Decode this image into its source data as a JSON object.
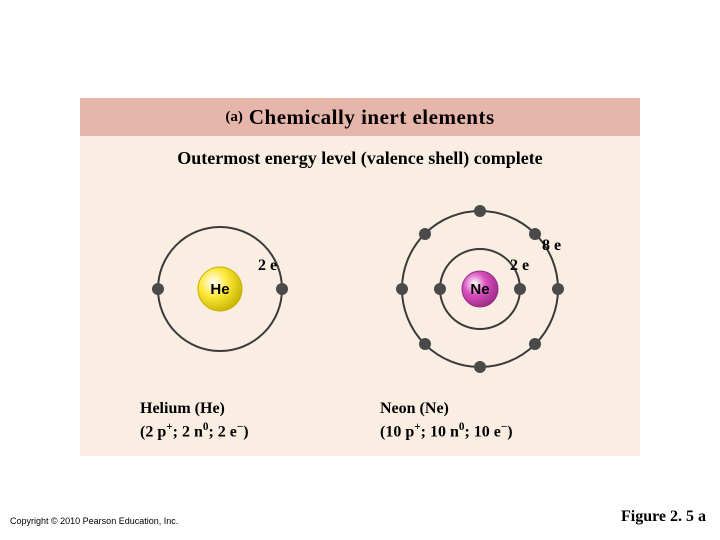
{
  "colors": {
    "panel_bg": "#faeee3",
    "title_bar_bg": "#e6b6ab",
    "orbit_stroke": "#3a3a3a",
    "electron_fill": "#4a4a4a",
    "he_fill": "#ffe83a",
    "he_stroke": "#c8b400",
    "ne_fill": "#d94fbf",
    "ne_stroke": "#9a2d86",
    "nucleus_text": "#000000"
  },
  "title": {
    "prefix": "(a)",
    "text": "Chemically inert elements"
  },
  "subtitle": "Outermost energy level (valence shell) complete",
  "helium": {
    "symbol": "He",
    "inner_label": "2 e",
    "name_line": "Helium (He)",
    "detail_html": "(2 p<sup>+</sup>; 2 n<sup>0</sup>; 2 e<sup>−</sup>)",
    "nucleus_r": 22,
    "shells": [
      {
        "r": 62,
        "electrons": [
          [
            -62,
            0
          ],
          [
            62,
            0
          ]
        ]
      }
    ]
  },
  "neon": {
    "symbol": "Ne",
    "inner_label": "2 e",
    "outer_label": "8 e",
    "name_line": "Neon (Ne)",
    "detail_html": "(10 p<sup>+</sup>; 10 n<sup>0</sup>; 10 e<sup>−</sup>)",
    "nucleus_r": 18,
    "shells": [
      {
        "r": 40,
        "electrons": [
          [
            -40,
            0
          ],
          [
            40,
            0
          ]
        ]
      },
      {
        "r": 78,
        "electrons": [
          [
            0,
            -78
          ],
          [
            0,
            78
          ],
          [
            -78,
            0
          ],
          [
            78,
            0
          ],
          [
            -55,
            -55
          ],
          [
            55,
            -55
          ],
          [
            -55,
            55
          ],
          [
            55,
            55
          ]
        ]
      }
    ]
  },
  "electron_r": 6,
  "copyright": "Copyright © 2010 Pearson Education, Inc.",
  "figure_ref": "Figure 2. 5 a"
}
